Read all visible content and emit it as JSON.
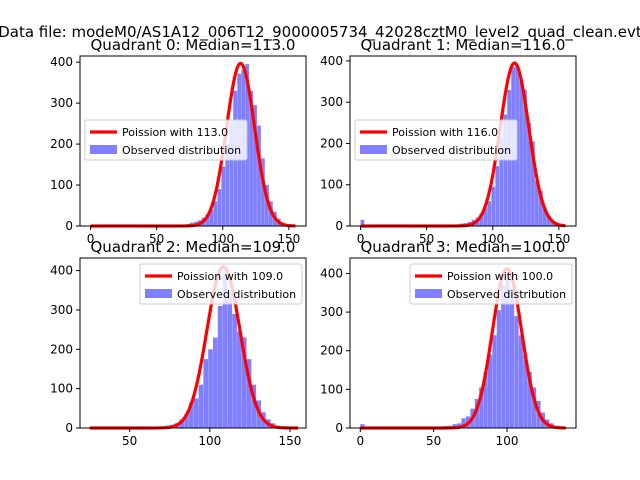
{
  "figure_title": "Data file: modeM0/AS1A12_006T12_9000005734_42028cztM0_level2_quad_clean.evt",
  "chart_data": [
    {
      "type": "bar",
      "title": "Quadrant 0: Median=113.0",
      "median": 113.0,
      "xlim": [
        -8,
        163
      ],
      "ylim": [
        0,
        415
      ],
      "xticks": [
        0,
        50,
        100,
        150
      ],
      "yticks": [
        0,
        100,
        200,
        300,
        400
      ],
      "legend_loc": "center-left",
      "series": [
        {
          "name": "Poission with 113.0",
          "kind": "line",
          "color": "#ff0000",
          "x_range": [
            0,
            155
          ],
          "peak_x": 113.5,
          "peak_y": 397,
          "sigma": 10.6
        },
        {
          "name": "Observed distribution",
          "kind": "histogram",
          "color": "#7f7fff",
          "bin_width": 3,
          "bins": [
            [
              0,
              0
            ],
            [
              63,
              2
            ],
            [
              66,
              3
            ],
            [
              69,
              3
            ],
            [
              72,
              5
            ],
            [
              75,
              8
            ],
            [
              78,
              10
            ],
            [
              81,
              14
            ],
            [
              84,
              20
            ],
            [
              87,
              28
            ],
            [
              90,
              40
            ],
            [
              93,
              60
            ],
            [
              96,
              90
            ],
            [
              99,
              145
            ],
            [
              102,
              200
            ],
            [
              105,
              255
            ],
            [
              108,
              330
            ],
            [
              111,
              372
            ],
            [
              114,
              382
            ],
            [
              117,
              395
            ],
            [
              120,
              330
            ],
            [
              123,
              295
            ],
            [
              126,
              245
            ],
            [
              129,
              165
            ],
            [
              132,
              100
            ],
            [
              135,
              60
            ],
            [
              138,
              35
            ],
            [
              141,
              18
            ],
            [
              144,
              8
            ],
            [
              147,
              4
            ],
            [
              150,
              2
            ],
            [
              153,
              0
            ]
          ]
        }
      ]
    },
    {
      "type": "bar",
      "title": "Quadrant 1: Median=116.0",
      "median": 116.0,
      "xlim": [
        -8,
        163
      ],
      "ylim": [
        0,
        412
      ],
      "xticks": [
        0,
        50,
        100,
        150
      ],
      "yticks": [
        0,
        100,
        200,
        300,
        400
      ],
      "legend_loc": "center-left",
      "series": [
        {
          "name": "Poission with 116.0",
          "kind": "line",
          "color": "#ff0000",
          "x_range": [
            0,
            155
          ],
          "peak_x": 116.5,
          "peak_y": 395,
          "sigma": 10.8
        },
        {
          "name": "Observed distribution",
          "kind": "histogram",
          "color": "#7f7fff",
          "bin_width": 3,
          "bins": [
            [
              0,
              15
            ],
            [
              66,
              2
            ],
            [
              69,
              3
            ],
            [
              72,
              4
            ],
            [
              75,
              6
            ],
            [
              78,
              7
            ],
            [
              81,
              10
            ],
            [
              84,
              15
            ],
            [
              87,
              20
            ],
            [
              90,
              30
            ],
            [
              93,
              45
            ],
            [
              96,
              60
            ],
            [
              99,
              95
            ],
            [
              102,
              145
            ],
            [
              105,
              215
            ],
            [
              108,
              270
            ],
            [
              111,
              330
            ],
            [
              114,
              385
            ],
            [
              117,
              390
            ],
            [
              120,
              355
            ],
            [
              123,
              330
            ],
            [
              126,
              250
            ],
            [
              129,
              205
            ],
            [
              132,
              110
            ],
            [
              135,
              85
            ],
            [
              138,
              45
            ],
            [
              141,
              25
            ],
            [
              144,
              12
            ],
            [
              147,
              5
            ],
            [
              150,
              2
            ]
          ]
        }
      ]
    },
    {
      "type": "bar",
      "title": "Quadrant 2: Median=109.0",
      "median": 109.0,
      "xlim": [
        19,
        160
      ],
      "ylim": [
        0,
        432
      ],
      "xticks": [
        50,
        100,
        150
      ],
      "yticks": [
        0,
        100,
        200,
        300,
        400
      ],
      "legend_loc": "upper-right",
      "series": [
        {
          "name": "Poission with 109.0",
          "kind": "line",
          "color": "#ff0000",
          "x_range": [
            25,
            155
          ],
          "peak_x": 108.5,
          "peak_y": 410,
          "sigma": 10.3
        },
        {
          "name": "Observed distribution",
          "kind": "histogram",
          "color": "#7f7fff",
          "bin_width": 3,
          "bins": [
            [
              60,
              2
            ],
            [
              63,
              2
            ],
            [
              66,
              3
            ],
            [
              69,
              4
            ],
            [
              72,
              6
            ],
            [
              75,
              8
            ],
            [
              78,
              12
            ],
            [
              81,
              22
            ],
            [
              84,
              35
            ],
            [
              87,
              65
            ],
            [
              90,
              75
            ],
            [
              93,
              110
            ],
            [
              96,
              175
            ],
            [
              99,
              200
            ],
            [
              102,
              230
            ],
            [
              105,
              310
            ],
            [
              108,
              390
            ],
            [
              111,
              350
            ],
            [
              114,
              290
            ],
            [
              117,
              245
            ],
            [
              120,
              230
            ],
            [
              123,
              175
            ],
            [
              126,
              110
            ],
            [
              129,
              70
            ],
            [
              132,
              40
            ],
            [
              135,
              22
            ],
            [
              138,
              12
            ],
            [
              141,
              6
            ],
            [
              144,
              4
            ],
            [
              147,
              2
            ]
          ]
        }
      ]
    },
    {
      "type": "bar",
      "title": "Quadrant 3: Median=100.0",
      "median": 100.0,
      "xlim": [
        -7,
        147
      ],
      "ylim": [
        0,
        440
      ],
      "xticks": [
        0,
        50,
        100
      ],
      "yticks": [
        0,
        100,
        200,
        300,
        400
      ],
      "legend_loc": "upper-right",
      "series": [
        {
          "name": "Poission with 100.0",
          "kind": "line",
          "color": "#ff0000",
          "x_range": [
            0,
            140
          ],
          "peak_x": 100,
          "peak_y": 412,
          "sigma": 10.0
        },
        {
          "name": "Observed distribution",
          "kind": "histogram",
          "color": "#7f7fff",
          "bin_width": 3,
          "bins": [
            [
              0,
              10
            ],
            [
              45,
              2
            ],
            [
              51,
              3
            ],
            [
              54,
              4
            ],
            [
              57,
              5
            ],
            [
              60,
              6
            ],
            [
              63,
              10
            ],
            [
              66,
              12
            ],
            [
              69,
              25
            ],
            [
              72,
              30
            ],
            [
              75,
              50
            ],
            [
              78,
              75
            ],
            [
              81,
              105
            ],
            [
              84,
              145
            ],
            [
              87,
              190
            ],
            [
              90,
              240
            ],
            [
              93,
              305
            ],
            [
              96,
              370
            ],
            [
              99,
              400
            ],
            [
              102,
              360
            ],
            [
              105,
              290
            ],
            [
              108,
              240
            ],
            [
              111,
              190
            ],
            [
              114,
              145
            ],
            [
              117,
              105
            ],
            [
              120,
              70
            ],
            [
              123,
              40
            ],
            [
              126,
              22
            ],
            [
              129,
              12
            ],
            [
              132,
              6
            ],
            [
              135,
              3
            ]
          ]
        }
      ]
    }
  ]
}
